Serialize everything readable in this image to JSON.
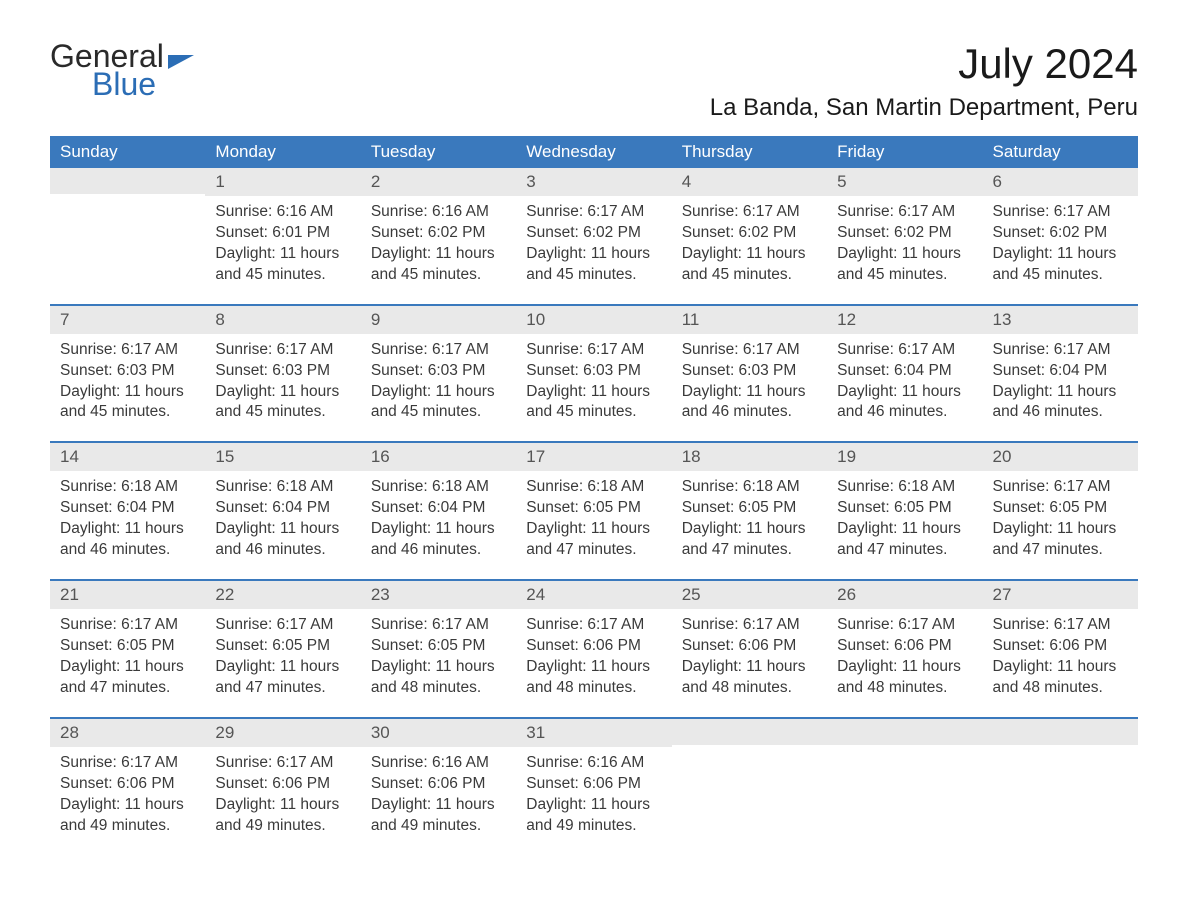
{
  "logo": {
    "word1": "General",
    "word2": "Blue"
  },
  "title": "July 2024",
  "location": "La Banda, San Martin Department, Peru",
  "dayHeaders": [
    "Sunday",
    "Monday",
    "Tuesday",
    "Wednesday",
    "Thursday",
    "Friday",
    "Saturday"
  ],
  "colors": {
    "header_bg": "#3a79bd",
    "header_text": "#ffffff",
    "daynum_bg": "#e9e9e9",
    "border": "#3a79bd",
    "body_text": "#3a3a3a",
    "page_bg": "#ffffff",
    "logo_accent": "#2b6db5"
  },
  "typography": {
    "title_fontsize": 42,
    "location_fontsize": 24,
    "header_fontsize": 17,
    "daynum_fontsize": 17,
    "body_fontsize": 15.5,
    "font_family": "Arial"
  },
  "labels": {
    "sunrise": "Sunrise:",
    "sunset": "Sunset:",
    "daylight": "Daylight:"
  },
  "weeks": [
    [
      null,
      {
        "n": "1",
        "sr": "6:16 AM",
        "ss": "6:01 PM",
        "dl": "11 hours and 45 minutes."
      },
      {
        "n": "2",
        "sr": "6:16 AM",
        "ss": "6:02 PM",
        "dl": "11 hours and 45 minutes."
      },
      {
        "n": "3",
        "sr": "6:17 AM",
        "ss": "6:02 PM",
        "dl": "11 hours and 45 minutes."
      },
      {
        "n": "4",
        "sr": "6:17 AM",
        "ss": "6:02 PM",
        "dl": "11 hours and 45 minutes."
      },
      {
        "n": "5",
        "sr": "6:17 AM",
        "ss": "6:02 PM",
        "dl": "11 hours and 45 minutes."
      },
      {
        "n": "6",
        "sr": "6:17 AM",
        "ss": "6:02 PM",
        "dl": "11 hours and 45 minutes."
      }
    ],
    [
      {
        "n": "7",
        "sr": "6:17 AM",
        "ss": "6:03 PM",
        "dl": "11 hours and 45 minutes."
      },
      {
        "n": "8",
        "sr": "6:17 AM",
        "ss": "6:03 PM",
        "dl": "11 hours and 45 minutes."
      },
      {
        "n": "9",
        "sr": "6:17 AM",
        "ss": "6:03 PM",
        "dl": "11 hours and 45 minutes."
      },
      {
        "n": "10",
        "sr": "6:17 AM",
        "ss": "6:03 PM",
        "dl": "11 hours and 45 minutes."
      },
      {
        "n": "11",
        "sr": "6:17 AM",
        "ss": "6:03 PM",
        "dl": "11 hours and 46 minutes."
      },
      {
        "n": "12",
        "sr": "6:17 AM",
        "ss": "6:04 PM",
        "dl": "11 hours and 46 minutes."
      },
      {
        "n": "13",
        "sr": "6:17 AM",
        "ss": "6:04 PM",
        "dl": "11 hours and 46 minutes."
      }
    ],
    [
      {
        "n": "14",
        "sr": "6:18 AM",
        "ss": "6:04 PM",
        "dl": "11 hours and 46 minutes."
      },
      {
        "n": "15",
        "sr": "6:18 AM",
        "ss": "6:04 PM",
        "dl": "11 hours and 46 minutes."
      },
      {
        "n": "16",
        "sr": "6:18 AM",
        "ss": "6:04 PM",
        "dl": "11 hours and 46 minutes."
      },
      {
        "n": "17",
        "sr": "6:18 AM",
        "ss": "6:05 PM",
        "dl": "11 hours and 47 minutes."
      },
      {
        "n": "18",
        "sr": "6:18 AM",
        "ss": "6:05 PM",
        "dl": "11 hours and 47 minutes."
      },
      {
        "n": "19",
        "sr": "6:18 AM",
        "ss": "6:05 PM",
        "dl": "11 hours and 47 minutes."
      },
      {
        "n": "20",
        "sr": "6:17 AM",
        "ss": "6:05 PM",
        "dl": "11 hours and 47 minutes."
      }
    ],
    [
      {
        "n": "21",
        "sr": "6:17 AM",
        "ss": "6:05 PM",
        "dl": "11 hours and 47 minutes."
      },
      {
        "n": "22",
        "sr": "6:17 AM",
        "ss": "6:05 PM",
        "dl": "11 hours and 47 minutes."
      },
      {
        "n": "23",
        "sr": "6:17 AM",
        "ss": "6:05 PM",
        "dl": "11 hours and 48 minutes."
      },
      {
        "n": "24",
        "sr": "6:17 AM",
        "ss": "6:06 PM",
        "dl": "11 hours and 48 minutes."
      },
      {
        "n": "25",
        "sr": "6:17 AM",
        "ss": "6:06 PM",
        "dl": "11 hours and 48 minutes."
      },
      {
        "n": "26",
        "sr": "6:17 AM",
        "ss": "6:06 PM",
        "dl": "11 hours and 48 minutes."
      },
      {
        "n": "27",
        "sr": "6:17 AM",
        "ss": "6:06 PM",
        "dl": "11 hours and 48 minutes."
      }
    ],
    [
      {
        "n": "28",
        "sr": "6:17 AM",
        "ss": "6:06 PM",
        "dl": "11 hours and 49 minutes."
      },
      {
        "n": "29",
        "sr": "6:17 AM",
        "ss": "6:06 PM",
        "dl": "11 hours and 49 minutes."
      },
      {
        "n": "30",
        "sr": "6:16 AM",
        "ss": "6:06 PM",
        "dl": "11 hours and 49 minutes."
      },
      {
        "n": "31",
        "sr": "6:16 AM",
        "ss": "6:06 PM",
        "dl": "11 hours and 49 minutes."
      },
      null,
      null,
      null
    ]
  ]
}
